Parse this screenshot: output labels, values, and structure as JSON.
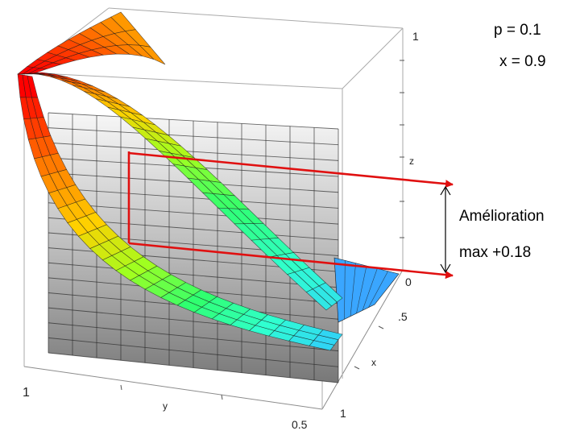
{
  "annotations": {
    "p_label": "p = 0.1",
    "x_label": "x = 0.9",
    "improvement_line1": "Amélioration",
    "improvement_line2": "max +0.18"
  },
  "axes": {
    "z": {
      "label": "z",
      "tick_top": "1",
      "tick_bottom": "0"
    },
    "x": {
      "label": "x",
      "tick_mid": ".5",
      "tick_end": "1"
    },
    "y": {
      "label": "y",
      "tick_start": "1",
      "tick_mid": "0.5"
    }
  },
  "colors": {
    "arrow": "#e01010",
    "ribbon_scale": [
      "#ff0000",
      "#ff7a00",
      "#ffd000",
      "#a0ff20",
      "#30ff70",
      "#30ffd0",
      "#30c8ff"
    ],
    "wall_top": "#ffffff",
    "wall_bottom": "#808080",
    "floor": "#3aa0ff"
  }
}
